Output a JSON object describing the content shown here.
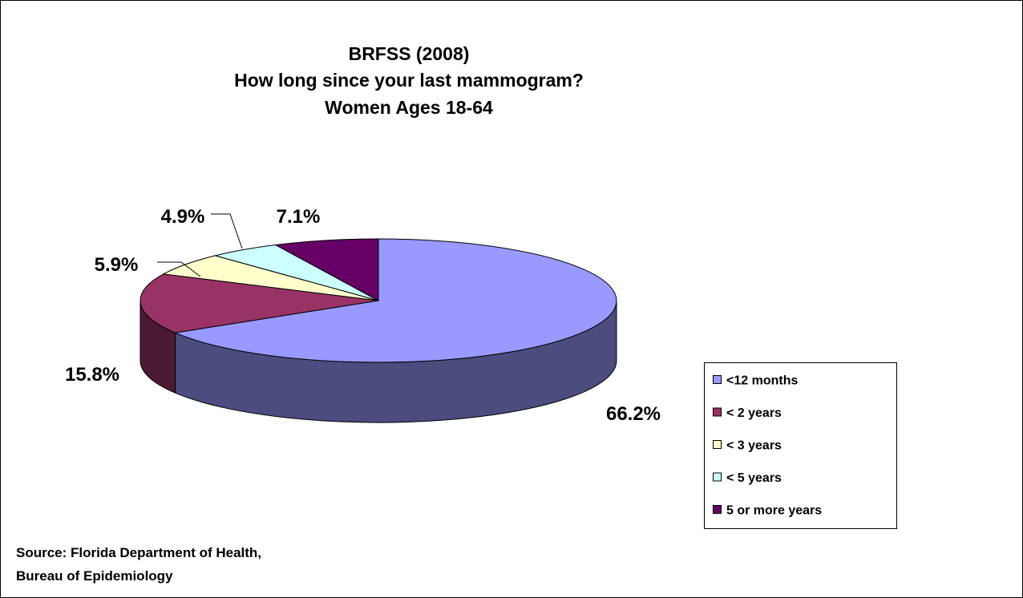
{
  "chart_data": {
    "type": "pie",
    "title": [
      "BRFSS (2008)",
      "How long since your last mammogram?",
      "Women Ages 18-64"
    ],
    "categories": [
      "<12 months",
      "< 2 years",
      "< 3 years",
      "< 5 years",
      "5 or more years"
    ],
    "values": [
      66.2,
      15.8,
      5.9,
      4.9,
      7.1
    ],
    "value_labels": [
      "66.2%",
      "15.8%",
      "5.9%",
      "4.9%",
      "7.1%"
    ],
    "colors": [
      "#9999ff",
      "#993366",
      "#ffffcc",
      "#ccffff",
      "#660066"
    ],
    "legend": "right",
    "source": [
      "Source: Florida Department of Health,",
      "Bureau of Epidemiology"
    ]
  }
}
